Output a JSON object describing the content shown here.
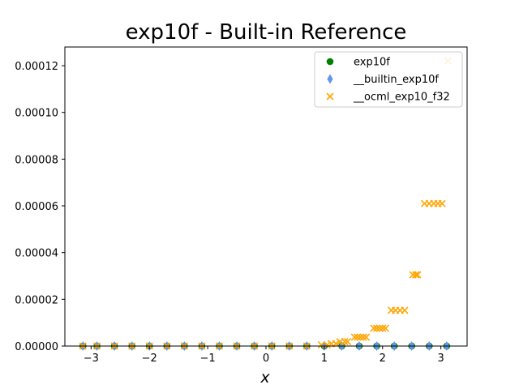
{
  "chart_data": {
    "type": "scatter",
    "title": "exp10f - Built-in Reference",
    "xlabel": "x",
    "ylabel": "",
    "xlim": [
      -3.45,
      3.45
    ],
    "ylim": [
      0,
      0.000128
    ],
    "xticks": [
      -3,
      -2,
      -1,
      0,
      1,
      2,
      3
    ],
    "xtick_labels": [
      "−3",
      "−2",
      "−1",
      "0",
      "1",
      "2",
      "3"
    ],
    "yticks": [
      0,
      2e-05,
      4e-05,
      6e-05,
      8e-05,
      0.0001,
      0.00012
    ],
    "ytick_labels": [
      "0.00000",
      "0.00002",
      "0.00004",
      "0.00006",
      "0.00008",
      "0.00010",
      "0.00012"
    ],
    "legend_position": "top-right",
    "series": [
      {
        "name": "exp10f",
        "marker": "circle",
        "color": "#008000",
        "x": [
          -3.14,
          -2.9,
          -2.6,
          -2.3,
          -2.0,
          -1.7,
          -1.4,
          -1.1,
          -0.8,
          -0.5,
          -0.2,
          0.1,
          0.4,
          0.7,
          1.0,
          1.3,
          1.6,
          1.9,
          2.2,
          2.5,
          2.8,
          3.1
        ],
        "y": [
          0,
          0,
          0,
          0,
          0,
          0,
          0,
          0,
          0,
          0,
          0,
          0,
          0,
          0,
          0,
          0,
          0,
          0,
          0,
          0,
          0,
          0
        ]
      },
      {
        "name": "__builtin_exp10f",
        "marker": "diamond",
        "color": "#6495ed",
        "x": [
          -3.14,
          -2.9,
          -2.6,
          -2.3,
          -2.0,
          -1.7,
          -1.4,
          -1.1,
          -0.8,
          -0.5,
          -0.2,
          0.1,
          0.4,
          0.7,
          1.0,
          1.3,
          1.6,
          1.9,
          2.2,
          2.5,
          2.8,
          3.1
        ],
        "y": [
          0,
          0,
          0,
          0,
          0,
          0,
          0,
          0,
          0,
          0,
          0,
          0,
          0,
          0,
          0,
          0,
          0,
          0,
          0,
          0,
          0,
          0
        ]
      },
      {
        "name": "__ocml_exp10_f32",
        "marker": "x",
        "color": "#ffa500",
        "x": [
          -3.14,
          -2.9,
          -2.6,
          -2.3,
          -2.0,
          -1.7,
          -1.4,
          -1.1,
          -0.8,
          -0.5,
          -0.2,
          0.1,
          0.4,
          0.7,
          0.95,
          1.05,
          1.12,
          1.2,
          1.27,
          1.35,
          1.4,
          1.52,
          1.57,
          1.62,
          1.67,
          1.72,
          1.85,
          1.9,
          1.95,
          2.0,
          2.05,
          2.15,
          2.22,
          2.3,
          2.38,
          2.52,
          2.57,
          2.6,
          2.72,
          2.8,
          2.88,
          2.95,
          3.02,
          3.12
        ],
        "y": [
          0,
          0,
          0,
          0,
          0,
          0,
          0,
          0,
          0,
          0,
          0,
          0,
          0,
          0,
          5e-07,
          5e-07,
          1e-06,
          1e-06,
          1.9e-06,
          1.9e-06,
          1.9e-06,
          3.8e-06,
          3.8e-06,
          3.8e-06,
          3.8e-06,
          3.8e-06,
          7.6e-06,
          7.6e-06,
          7.6e-06,
          7.6e-06,
          7.6e-06,
          1.53e-05,
          1.53e-05,
          1.53e-05,
          1.53e-05,
          3.05e-05,
          3.05e-05,
          3.05e-05,
          6.1e-05,
          6.1e-05,
          6.1e-05,
          6.1e-05,
          6.1e-05,
          0.000122
        ]
      }
    ]
  }
}
